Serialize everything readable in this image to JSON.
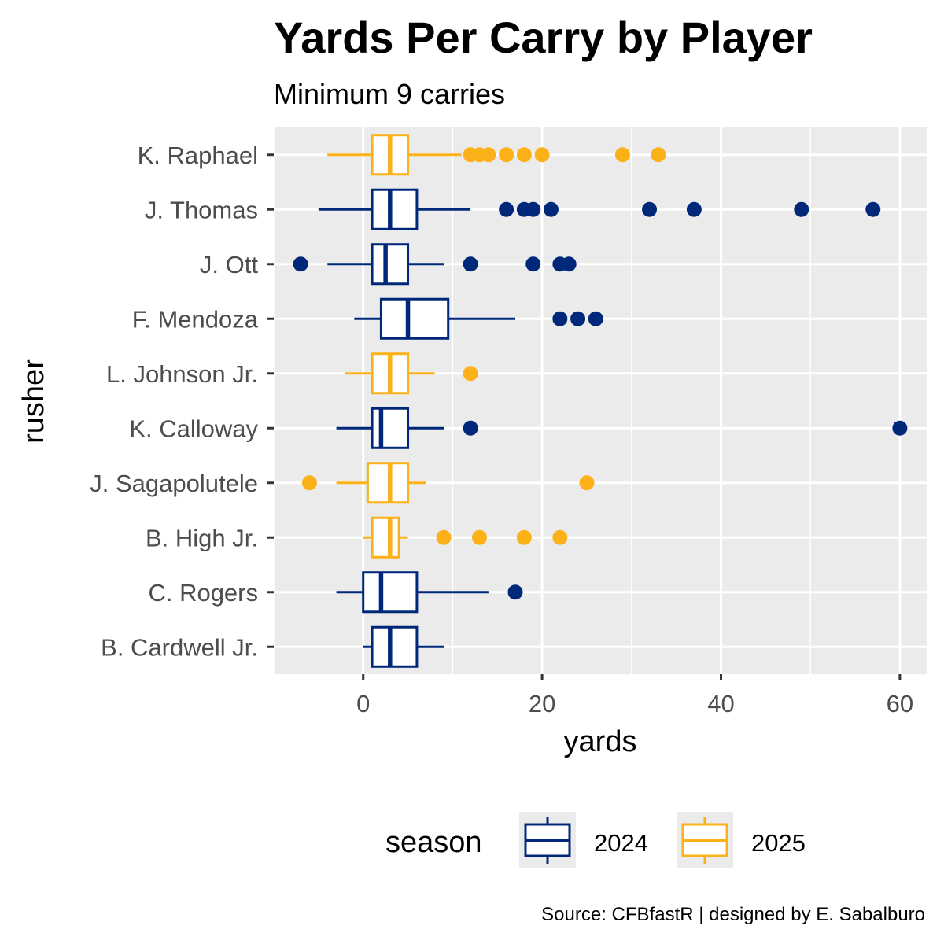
{
  "colors": {
    "panel_bg": "#ebebeb",
    "grid": "#ffffff",
    "tick": "#333333",
    "2024": "#00287a",
    "2025": "#fbb117"
  },
  "chart_data": {
    "type": "boxplot",
    "orientation": "horizontal",
    "title": "Yards Per Carry by Player",
    "subtitle": "Minimum 9 carries",
    "xlabel": "yards",
    "ylabel": "rusher",
    "xlim": [
      -10,
      63
    ],
    "xticks": [
      0,
      20,
      40,
      60
    ],
    "grid": true,
    "legend": {
      "title": "season",
      "position": "bottom",
      "entries": [
        "2024",
        "2025"
      ]
    },
    "caption": "Source: CFBfastR | designed by E. Sabalburo",
    "players": [
      {
        "name": "K. Raphael",
        "season": "2025",
        "lower_whisker": -4,
        "q1": 1,
        "median": 3,
        "q3": 5,
        "upper_whisker": 11,
        "outliers": [
          12,
          13,
          14,
          16,
          18,
          20,
          29,
          33
        ]
      },
      {
        "name": "J. Thomas",
        "season": "2024",
        "lower_whisker": -5,
        "q1": 1,
        "median": 3,
        "q3": 6,
        "upper_whisker": 12,
        "outliers": [
          16,
          18,
          19,
          21,
          32,
          37,
          49,
          57
        ]
      },
      {
        "name": "J. Ott",
        "season": "2024",
        "lower_whisker": -4,
        "q1": 1,
        "median": 2.5,
        "q3": 5,
        "upper_whisker": 9,
        "outliers": [
          -7,
          12,
          19,
          22,
          23
        ]
      },
      {
        "name": "F. Mendoza",
        "season": "2024",
        "lower_whisker": -1,
        "q1": 2,
        "median": 5,
        "q3": 9.5,
        "upper_whisker": 17,
        "outliers": [
          22,
          24,
          26
        ]
      },
      {
        "name": "L. Johnson Jr.",
        "season": "2025",
        "lower_whisker": -2,
        "q1": 1,
        "median": 3,
        "q3": 5,
        "upper_whisker": 8,
        "outliers": [
          12
        ]
      },
      {
        "name": "K. Calloway",
        "season": "2024",
        "lower_whisker": -3,
        "q1": 1,
        "median": 2,
        "q3": 5,
        "upper_whisker": 9,
        "outliers": [
          12,
          60
        ]
      },
      {
        "name": "J. Sagapolutele",
        "season": "2025",
        "lower_whisker": -3,
        "q1": 0.5,
        "median": 3,
        "q3": 5,
        "upper_whisker": 7,
        "outliers": [
          -6,
          25
        ]
      },
      {
        "name": "B. High Jr.",
        "season": "2025",
        "lower_whisker": 0,
        "q1": 1,
        "median": 3,
        "q3": 4,
        "upper_whisker": 5,
        "outliers": [
          9,
          13,
          18,
          22
        ]
      },
      {
        "name": "C. Rogers",
        "season": "2024",
        "lower_whisker": -3,
        "q1": 0,
        "median": 2,
        "q3": 6,
        "upper_whisker": 14,
        "outliers": [
          17
        ]
      },
      {
        "name": "B. Cardwell Jr.",
        "season": "2024",
        "lower_whisker": 0,
        "q1": 1,
        "median": 3,
        "q3": 6,
        "upper_whisker": 9,
        "outliers": []
      }
    ]
  }
}
